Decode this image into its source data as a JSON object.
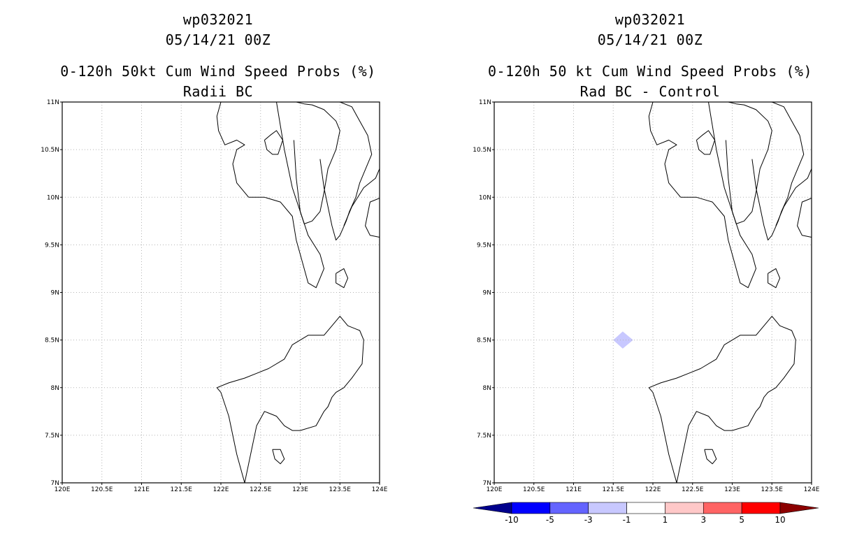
{
  "panels": [
    {
      "storm_id": "wp032021",
      "datetime": "05/14/21 00Z",
      "title": "0-120h 50kt Cum Wind Speed Probs (%)",
      "subtitle": "Radii BC"
    },
    {
      "storm_id": "wp032021",
      "datetime": "05/14/21 00Z",
      "title": "0-120h 50 kt Cum Wind Speed Probs (%)",
      "subtitle": "Rad BC - Control"
    }
  ],
  "chart_data": [
    {
      "type": "map",
      "title": "0-120h 50kt Cum Wind Speed Probs (%)",
      "subtitle": "Radii BC",
      "xlim": [
        120,
        124
      ],
      "ylim": [
        7,
        11
      ],
      "xticks": [
        120,
        120.5,
        121,
        121.5,
        122,
        122.5,
        123,
        123.5,
        124
      ],
      "xtick_labels": [
        "120E",
        "120.5E",
        "121E",
        "121.5E",
        "122E",
        "122.5E",
        "123E",
        "123.5E",
        "124E"
      ],
      "yticks": [
        7,
        7.5,
        8,
        8.5,
        9,
        9.5,
        10,
        10.5,
        11
      ],
      "ytick_labels": [
        "7N",
        "7.5N",
        "8N",
        "8.5N",
        "9N",
        "9.5N",
        "10N",
        "10.5N",
        "11N"
      ],
      "grid": true,
      "shaded_regions": []
    },
    {
      "type": "map",
      "title": "0-120h 50 kt Cum Wind Speed Probs (%)",
      "subtitle": "Rad BC - Control",
      "xlim": [
        120,
        124
      ],
      "ylim": [
        7,
        11
      ],
      "xticks": [
        120,
        120.5,
        121,
        121.5,
        122,
        122.5,
        123,
        123.5,
        124
      ],
      "xtick_labels": [
        "120E",
        "120.5E",
        "121E",
        "121.5E",
        "122E",
        "122.5E",
        "123E",
        "123.5E",
        "124E"
      ],
      "yticks": [
        7,
        7.5,
        8,
        8.5,
        9,
        9.5,
        10,
        10.5,
        11
      ],
      "ytick_labels": [
        "7N",
        "7.5N",
        "8N",
        "8.5N",
        "9N",
        "9.5N",
        "10N",
        "10.5N",
        "11N"
      ],
      "grid": true,
      "shaded_regions": [
        {
          "category": "-3 to -1",
          "color": "#c8c8ff",
          "lon": [
            121.5,
            121.62,
            121.75,
            121.62,
            121.5
          ],
          "lat": [
            8.5,
            8.59,
            8.5,
            8.41,
            8.5
          ]
        }
      ],
      "colorbar": {
        "labels": [
          "-10",
          "-5",
          "-3",
          "-1",
          "1",
          "3",
          "5",
          "10"
        ],
        "colors": [
          "#00008c",
          "#0000ff",
          "#6464ff",
          "#c8c8ff",
          "#ffffff",
          "#ffc8c8",
          "#ff6464",
          "#ff0000",
          "#8c0000"
        ]
      }
    }
  ],
  "coastlines": [
    {
      "lon": [
        122.0,
        121.95,
        121.97,
        122.05,
        122.2,
        122.3,
        122.2,
        122.15,
        122.2,
        122.35
      ],
      "lat": [
        11.0,
        10.85,
        10.7,
        10.55,
        10.6,
        10.55,
        10.5,
        10.35,
        10.15,
        10.0
      ]
    },
    {
      "lon": [
        122.35,
        122.55,
        122.75,
        122.9,
        122.95,
        123.0,
        123.1,
        123.2,
        123.3,
        123.25,
        123.1,
        123.0,
        122.9,
        122.8,
        122.7
      ],
      "lat": [
        10.0,
        10.0,
        9.95,
        9.8,
        9.55,
        9.4,
        9.1,
        9.05,
        9.25,
        9.4,
        9.6,
        9.85,
        10.1,
        10.5,
        11.0
      ]
    },
    {
      "lon": [
        122.85,
        122.95,
        123.05,
        123.15,
        123.3,
        123.45,
        123.5,
        123.45,
        123.35,
        123.3,
        123.25,
        123.15,
        123.05,
        123.0,
        122.95,
        122.92
      ],
      "lat": [
        11.0,
        11.0,
        10.98,
        10.97,
        10.92,
        10.8,
        10.7,
        10.5,
        10.3,
        10.05,
        9.85,
        9.75,
        9.72,
        9.85,
        10.2,
        10.6
      ]
    },
    {
      "lon": [
        123.25,
        123.35,
        123.5,
        123.65,
        123.75,
        123.85,
        123.9,
        123.85,
        123.75,
        123.7,
        123.62,
        123.58,
        123.5,
        123.45,
        123.4,
        123.35,
        123.3,
        123.25
      ],
      "lat": [
        11.0,
        11.0,
        11.0,
        10.95,
        10.8,
        10.65,
        10.45,
        10.35,
        10.15,
        10.0,
        9.85,
        9.75,
        9.6,
        9.55,
        9.7,
        9.9,
        10.1,
        10.4
      ]
    },
    {
      "lon": [
        123.55,
        123.65,
        123.8,
        123.95,
        124.0
      ],
      "lat": [
        9.7,
        9.9,
        10.1,
        10.2,
        10.3
      ]
    },
    {
      "lon": [
        124.0,
        123.88,
        123.82,
        123.88,
        124.0
      ],
      "lat": [
        9.99,
        9.95,
        9.7,
        9.6,
        9.58
      ]
    },
    {
      "lon": [
        122.55,
        122.62,
        122.7,
        122.78,
        122.72,
        122.65,
        122.58,
        122.55
      ],
      "lat": [
        10.6,
        10.65,
        10.7,
        10.6,
        10.45,
        10.45,
        10.5,
        10.6
      ]
    },
    {
      "lon": [
        123.45,
        123.55,
        123.6,
        123.55,
        123.45,
        123.45
      ],
      "lat": [
        9.2,
        9.25,
        9.15,
        9.05,
        9.1,
        9.2
      ]
    },
    {
      "lon": [
        122.3,
        122.2,
        122.15,
        122.1,
        122.0,
        121.95
      ],
      "lat": [
        7.0,
        7.3,
        7.5,
        7.7,
        7.95,
        8.0
      ]
    },
    {
      "lon": [
        121.95,
        122.1,
        122.3,
        122.45,
        122.6,
        122.8,
        122.9,
        123.1,
        123.3,
        123.45,
        123.5,
        123.6,
        123.75,
        123.8,
        123.78,
        123.65,
        123.55,
        123.45,
        123.4,
        123.35,
        123.3,
        123.2,
        123.0,
        122.9,
        122.8,
        122.7,
        122.55,
        122.45,
        122.4,
        122.3
      ],
      "lat": [
        8.0,
        8.05,
        8.1,
        8.15,
        8.2,
        8.3,
        8.45,
        8.55,
        8.55,
        8.7,
        8.75,
        8.65,
        8.6,
        8.5,
        8.25,
        8.1,
        8.0,
        7.95,
        7.9,
        7.8,
        7.75,
        7.6,
        7.55,
        7.55,
        7.6,
        7.7,
        7.75,
        7.6,
        7.4,
        7.0
      ]
    },
    {
      "lon": [
        122.65,
        122.75,
        122.8,
        122.75,
        122.68,
        122.65
      ],
      "lat": [
        7.35,
        7.35,
        7.25,
        7.2,
        7.25,
        7.35
      ]
    }
  ]
}
